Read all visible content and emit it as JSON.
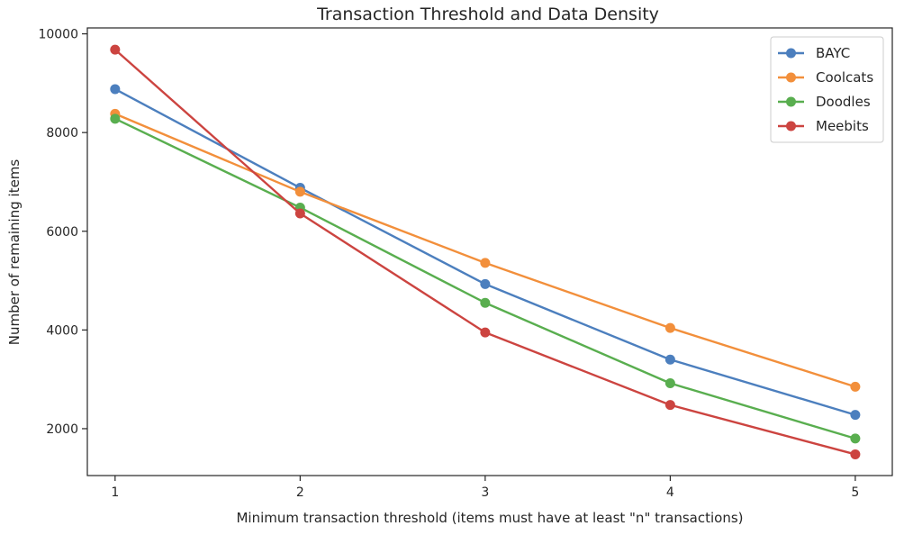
{
  "chart_data": {
    "type": "line",
    "title": "Transaction Threshold and Data Density",
    "xlabel": "Minimum transaction threshold (items must have at least \"n\" transactions)",
    "ylabel": "Number of remaining items",
    "x": [
      1,
      2,
      3,
      4,
      5
    ],
    "xticks": [
      "1",
      "2",
      "3",
      "4",
      "5"
    ],
    "xlim": [
      0.85,
      5.2
    ],
    "yticks": [
      2000,
      4000,
      6000,
      8000,
      10000
    ],
    "ytick_labels": [
      "2000",
      "4000",
      "6000",
      "8000",
      "10000"
    ],
    "ylim": [
      1050,
      10120
    ],
    "grid": false,
    "legend": "top-right",
    "series": [
      {
        "name": "BAYC",
        "color": "#4c7fbe",
        "values": [
          8880,
          6880,
          4930,
          3400,
          2280
        ]
      },
      {
        "name": "Coolcats",
        "color": "#f28f3b",
        "values": [
          8380,
          6800,
          5360,
          4040,
          2850
        ]
      },
      {
        "name": "Doodles",
        "color": "#59ae4f",
        "values": [
          8280,
          6480,
          4550,
          2920,
          1800
        ]
      },
      {
        "name": "Meebits",
        "color": "#cc4440",
        "values": [
          9680,
          6360,
          3950,
          2480,
          1480
        ]
      }
    ]
  }
}
